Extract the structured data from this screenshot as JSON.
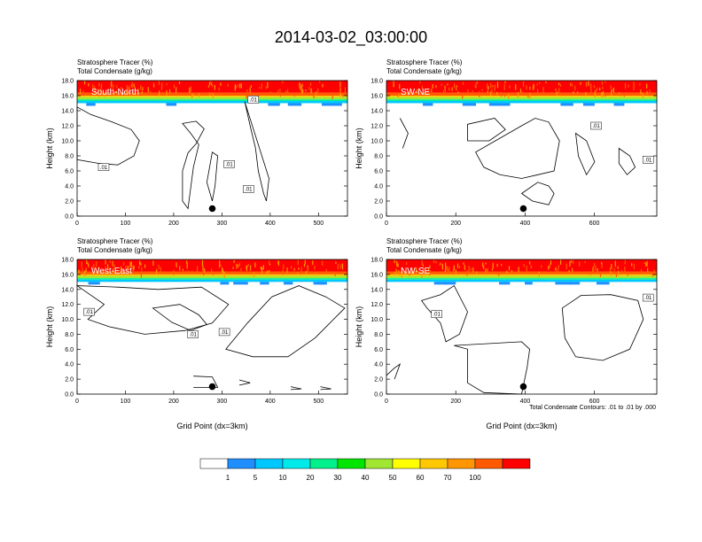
{
  "title": "2014-03-02_03:00:00",
  "colors": {
    "levels": [
      "#ffffff",
      "#1f8fff",
      "#00c8ff",
      "#00eaea",
      "#00f08c",
      "#00e600",
      "#a0e632",
      "#ffff00",
      "#ffc800",
      "#ff9600",
      "#ff5a00",
      "#ff0000"
    ],
    "contour": "#000000"
  },
  "colorbar": {
    "labels": [
      "1",
      "5",
      "10",
      "20",
      "30",
      "40",
      "50",
      "60",
      "70",
      "100"
    ]
  },
  "footnote": "Total Condensate Contours: .01 to .01 by .000",
  "chart_data": [
    {
      "type": "heatmap",
      "name": "South-North",
      "header_line1": "Stratosphere Tracer   (%)",
      "header_line2": "Total Condensate   (g/kg)",
      "ylabel": "Height (km)",
      "xlabel": "",
      "xlim": [
        0,
        560
      ],
      "ylim": [
        0,
        18
      ],
      "xticks": [
        "0",
        "100",
        "200",
        "300",
        "400",
        "500"
      ],
      "xtick_values": [
        0,
        100,
        200,
        300,
        400,
        500
      ],
      "yticks": [
        "0.0",
        "2.0",
        "4.0",
        "6.0",
        "8.0",
        "10.0",
        "12.0",
        "14.0",
        "16.0",
        "18.0"
      ],
      "marker": {
        "x": 280,
        "y": 1.0
      },
      "contour_labels": [
        {
          "text": ".01",
          "x": 55,
          "y": 6.5
        },
        {
          "text": ".01",
          "x": 315,
          "y": 6.9
        },
        {
          "text": ".01",
          "x": 355,
          "y": 3.6
        },
        {
          "text": ".01",
          "x": 365,
          "y": 15.5
        }
      ]
    },
    {
      "type": "heatmap",
      "name": "SW-NE",
      "header_line1": "Stratosphere Tracer   (%)",
      "header_line2": "Total Condensate   (g/kg)",
      "ylabel": "Height (km)",
      "xlabel": "",
      "xlim": [
        0,
        780
      ],
      "ylim": [
        0,
        18
      ],
      "xticks": [
        "0",
        "200",
        "400",
        "600"
      ],
      "xtick_values": [
        0,
        200,
        400,
        600
      ],
      "yticks": [
        "0.0",
        "2.0",
        "4.0",
        "6.0",
        "8.0",
        "10.0",
        "12.0",
        "14.0",
        "16.0",
        "18.0"
      ],
      "marker": {
        "x": 395,
        "y": 1.0
      },
      "contour_labels": [
        {
          "text": ".01",
          "x": 605,
          "y": 12.0
        },
        {
          "text": ".01",
          "x": 755,
          "y": 7.5
        }
      ]
    },
    {
      "type": "heatmap",
      "name": "West-East",
      "header_line1": "Stratosphere Tracer   (%)",
      "header_line2": "Total Condensate   (g/kg)",
      "ylabel": "Height (km)",
      "xlabel": "Grid Point (dx=3km)",
      "xlim": [
        0,
        560
      ],
      "ylim": [
        0,
        18
      ],
      "xticks": [
        "0",
        "100",
        "200",
        "300",
        "400",
        "500"
      ],
      "xtick_values": [
        0,
        100,
        200,
        300,
        400,
        500
      ],
      "yticks": [
        "0.0",
        "2.0",
        "4.0",
        "6.0",
        "8.0",
        "10.0",
        "12.0",
        "14.0",
        "16.0",
        "18.0"
      ],
      "marker": {
        "x": 280,
        "y": 1.0
      },
      "contour_labels": [
        {
          "text": ".01",
          "x": 25,
          "y": 11.0
        },
        {
          "text": ".01",
          "x": 240,
          "y": 8.0
        },
        {
          "text": ".01",
          "x": 305,
          "y": 8.3
        }
      ]
    },
    {
      "type": "heatmap",
      "name": "NW-SE",
      "header_line1": "Stratosphere Tracer   (%)",
      "header_line2": "Total Condensate   (g/kg)",
      "ylabel": "Height (km)",
      "xlabel": "Grid Point (dx=3km)",
      "xlim": [
        0,
        780
      ],
      "ylim": [
        0,
        18
      ],
      "xticks": [
        "0",
        "200",
        "400",
        "600"
      ],
      "xtick_values": [
        0,
        200,
        400,
        600
      ],
      "yticks": [
        "0.0",
        "2.0",
        "4.0",
        "6.0",
        "8.0",
        "10.0",
        "12.0",
        "14.0",
        "16.0",
        "18.0"
      ],
      "marker": {
        "x": 395,
        "y": 1.0
      },
      "contour_labels": [
        {
          "text": ".01",
          "x": 145,
          "y": 10.7
        },
        {
          "text": ".01",
          "x": 755,
          "y": 12.9
        }
      ]
    }
  ]
}
